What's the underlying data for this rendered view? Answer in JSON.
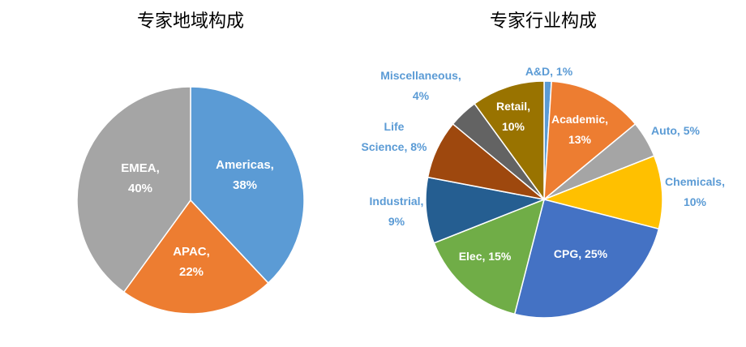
{
  "chart_data": [
    {
      "type": "pie",
      "title": "专家地域构成",
      "slices": [
        {
          "name": "Americas",
          "value": 38,
          "color": "#5B9BD5",
          "label_lines": [
            "Americas,",
            "38%"
          ],
          "label_color": "#ffffff"
        },
        {
          "name": "APAC",
          "value": 22,
          "color": "#ED7D31",
          "label_lines": [
            "APAC,",
            "22%"
          ],
          "label_color": "#ffffff"
        },
        {
          "name": "EMEA",
          "value": 40,
          "color": "#A5A5A5",
          "label_lines": [
            "EMEA,",
            "40%"
          ],
          "label_color": "#ffffff"
        }
      ]
    },
    {
      "type": "pie",
      "title": "专家行业构成",
      "slices": [
        {
          "name": "A&D",
          "value": 1,
          "color": "#5B9BD5",
          "label_lines": [
            "A&D, 1%"
          ],
          "label_color": "#5B9BD5"
        },
        {
          "name": "Academic",
          "value": 13,
          "color": "#ED7D31",
          "label_lines": [
            "Academic,",
            "13%"
          ],
          "label_color": "#ffffff"
        },
        {
          "name": "Auto",
          "value": 5,
          "color": "#A5A5A5",
          "label_lines": [
            "Auto, 5%"
          ],
          "label_color": "#5B9BD5"
        },
        {
          "name": "Chemicals",
          "value": 10,
          "color": "#FFC000",
          "label_lines": [
            "Chemicals,",
            "10%"
          ],
          "label_color": "#5B9BD5"
        },
        {
          "name": "CPG",
          "value": 25,
          "color": "#4472C4",
          "label_lines": [
            "CPG, 25%"
          ],
          "label_color": "#ffffff"
        },
        {
          "name": "Elec",
          "value": 15,
          "color": "#70AD47",
          "label_lines": [
            "Elec, 15%"
          ],
          "label_color": "#ffffff"
        },
        {
          "name": "Industrial",
          "value": 9,
          "color": "#255E91",
          "label_lines": [
            "Industrial,",
            "9%"
          ],
          "label_color": "#5B9BD5"
        },
        {
          "name": "Life Science",
          "value": 8,
          "color": "#9E480E",
          "label_lines": [
            "Life",
            "Science, 8%"
          ],
          "label_color": "#5B9BD5"
        },
        {
          "name": "Miscellaneous",
          "value": 4,
          "color": "#636363",
          "label_lines": [
            "Miscellaneous,",
            "4%"
          ],
          "label_color": "#5B9BD5"
        },
        {
          "name": "Retail",
          "value": 10,
          "color": "#997300",
          "label_lines": [
            "Retail,",
            "10%"
          ],
          "label_color": "#ffffff"
        }
      ]
    }
  ]
}
